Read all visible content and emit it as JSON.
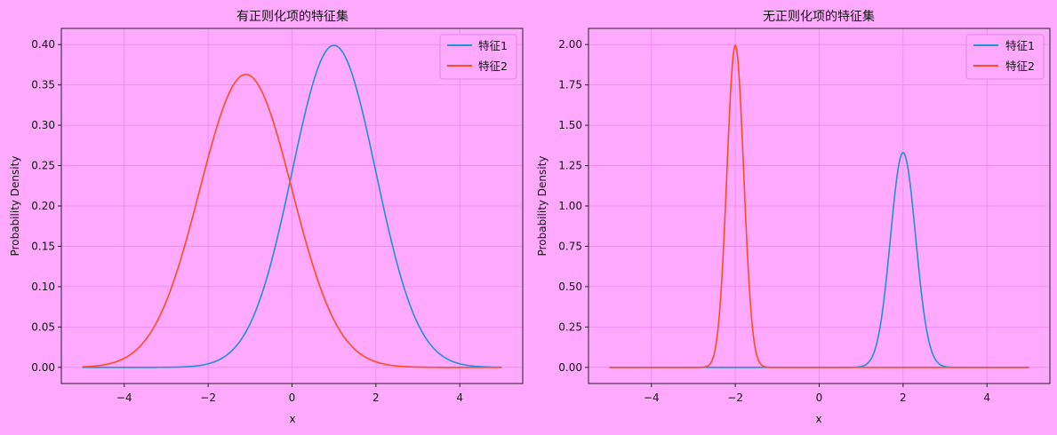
{
  "colors": {
    "background": "#ffaaff",
    "grid": "#ee88ee",
    "series1": "#1f8fdf",
    "series2": "#ff4b1f"
  },
  "chart_data": [
    {
      "type": "line",
      "title": "有正则化项的特征集",
      "xlabel": "x",
      "ylabel": "Probability Density",
      "xlim": [
        -5.5,
        5.5
      ],
      "ylim": [
        -0.02,
        0.42
      ],
      "xticks": [
        -4,
        -2,
        0,
        2,
        4
      ],
      "yticks": [
        0.0,
        0.05,
        0.1,
        0.15,
        0.2,
        0.25,
        0.3,
        0.35,
        0.4
      ],
      "xtick_labels": [
        "−4",
        "−2",
        "0",
        "2",
        "4"
      ],
      "ytick_labels": [
        "0.00",
        "0.05",
        "0.10",
        "0.15",
        "0.20",
        "0.25",
        "0.30",
        "0.35",
        "0.40"
      ],
      "grid": true,
      "legend": "top-right",
      "x_range": [
        -5,
        5
      ],
      "series": [
        {
          "name": "特征1",
          "distribution": "normal",
          "mean": 1.0,
          "std": 1.0,
          "peak": 0.399
        },
        {
          "name": "特征2",
          "distribution": "normal",
          "mean": -1.1,
          "std": 1.1,
          "peak": 0.363
        }
      ]
    },
    {
      "type": "line",
      "title": "无正则化项的特征集",
      "xlabel": "x",
      "ylabel": "Probability Density",
      "xlim": [
        -5.5,
        5.5
      ],
      "ylim": [
        -0.1,
        2.1
      ],
      "xticks": [
        -4,
        -2,
        0,
        2,
        4
      ],
      "yticks": [
        0.0,
        0.25,
        0.5,
        0.75,
        1.0,
        1.25,
        1.5,
        1.75,
        2.0
      ],
      "xtick_labels": [
        "−4",
        "−2",
        "0",
        "2",
        "4"
      ],
      "ytick_labels": [
        "0.00",
        "0.25",
        "0.50",
        "0.75",
        "1.00",
        "1.25",
        "1.50",
        "1.75",
        "2.00"
      ],
      "grid": true,
      "legend": "top-right",
      "x_range": [
        -5,
        5
      ],
      "series": [
        {
          "name": "特征1",
          "distribution": "normal",
          "mean": 2.0,
          "std": 0.3,
          "peak": 1.33
        },
        {
          "name": "特征2",
          "distribution": "normal",
          "mean": -2.0,
          "std": 0.2,
          "peak": 1.995
        }
      ]
    }
  ]
}
